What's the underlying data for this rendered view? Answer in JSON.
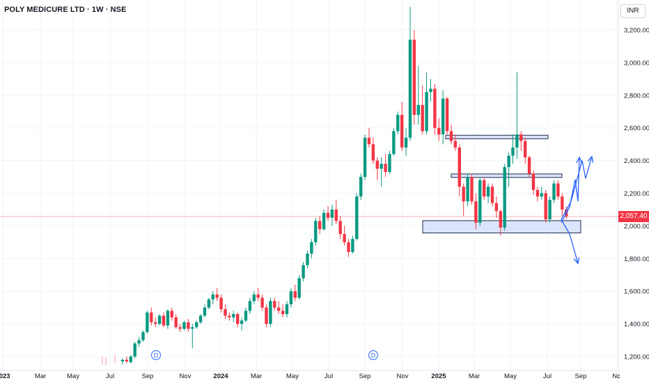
{
  "header": {
    "title": "POLY MEDICURE LTD · 1W · NSE",
    "currency": "INR"
  },
  "colors": {
    "up": "#089981",
    "down": "#f23645",
    "price_line": "#f23645",
    "zone_fill": "#dbe4fb",
    "zone_stroke": "#1e2a4a",
    "arrow": "#2962ff",
    "grid": "#f0f3fa",
    "event_marker": "#2962ff"
  },
  "chart_data": {
    "type": "candlestick",
    "title": "POLY MEDICURE LTD · 1W · NSE",
    "ylim": [
      1150,
      3400
    ],
    "y_ticks": [
      1200,
      1400,
      1600,
      1800,
      2000,
      2200,
      2400,
      2600,
      2800,
      3000,
      3200
    ],
    "y_tick_labels": [
      "1,200.00",
      "1,400.00",
      "1,600.00",
      "1,800.00",
      "2,000.00",
      "2,200.00",
      "2,400.00",
      "2,600.00",
      "2,800.00",
      "3,000.00",
      "3,200.00"
    ],
    "x_tick_labels": [
      "2023",
      "Mar",
      "May",
      "Jul",
      "Sep",
      "Nov",
      "2024",
      "Mar",
      "May",
      "Jul",
      "Sep",
      "Nov",
      "2025",
      "Mar",
      "May",
      "Jul",
      "Sep",
      "Nc"
    ],
    "x_tick_bold": [
      true,
      false,
      false,
      false,
      false,
      false,
      true,
      false,
      false,
      false,
      false,
      false,
      true,
      false,
      false,
      false,
      false,
      false
    ],
    "last_price": 2057.4,
    "last_price_label": "2,057.40",
    "dividend_marker_label": "D",
    "candles": [
      [
        1170,
        1190,
        1150,
        1180
      ],
      [
        1180,
        1200,
        1160,
        1170
      ],
      [
        1165,
        1210,
        1160,
        1200
      ],
      [
        1200,
        1290,
        1190,
        1280
      ],
      [
        1280,
        1320,
        1260,
        1300
      ],
      [
        1300,
        1360,
        1290,
        1350
      ],
      [
        1350,
        1480,
        1340,
        1470
      ],
      [
        1470,
        1500,
        1390,
        1410
      ],
      [
        1410,
        1440,
        1380,
        1400
      ],
      [
        1400,
        1460,
        1390,
        1450
      ],
      [
        1450,
        1470,
        1380,
        1390
      ],
      [
        1390,
        1490,
        1370,
        1480
      ],
      [
        1480,
        1500,
        1420,
        1440
      ],
      [
        1440,
        1460,
        1370,
        1380
      ],
      [
        1380,
        1400,
        1350,
        1370
      ],
      [
        1370,
        1420,
        1360,
        1410
      ],
      [
        1410,
        1430,
        1350,
        1370
      ],
      [
        1370,
        1400,
        1250,
        1380
      ],
      [
        1380,
        1420,
        1370,
        1410
      ],
      [
        1410,
        1460,
        1400,
        1450
      ],
      [
        1450,
        1520,
        1440,
        1500
      ],
      [
        1500,
        1560,
        1490,
        1550
      ],
      [
        1550,
        1600,
        1520,
        1580
      ],
      [
        1580,
        1620,
        1540,
        1560
      ],
      [
        1560,
        1580,
        1470,
        1490
      ],
      [
        1490,
        1520,
        1430,
        1450
      ],
      [
        1450,
        1470,
        1420,
        1440
      ],
      [
        1440,
        1480,
        1410,
        1460
      ],
      [
        1460,
        1470,
        1380,
        1400
      ],
      [
        1400,
        1440,
        1360,
        1420
      ],
      [
        1420,
        1500,
        1410,
        1480
      ],
      [
        1480,
        1560,
        1460,
        1540
      ],
      [
        1540,
        1600,
        1520,
        1580
      ],
      [
        1580,
        1620,
        1540,
        1560
      ],
      [
        1560,
        1580,
        1480,
        1500
      ],
      [
        1500,
        1520,
        1380,
        1400
      ],
      [
        1400,
        1560,
        1380,
        1540
      ],
      [
        1540,
        1560,
        1480,
        1500
      ],
      [
        1500,
        1540,
        1460,
        1480
      ],
      [
        1480,
        1520,
        1440,
        1460
      ],
      [
        1460,
        1540,
        1440,
        1520
      ],
      [
        1520,
        1620,
        1500,
        1600
      ],
      [
        1600,
        1640,
        1540,
        1560
      ],
      [
        1560,
        1700,
        1550,
        1680
      ],
      [
        1680,
        1780,
        1660,
        1760
      ],
      [
        1760,
        1850,
        1740,
        1830
      ],
      [
        1830,
        1920,
        1800,
        1900
      ],
      [
        1900,
        2050,
        1880,
        2030
      ],
      [
        2030,
        2060,
        1950,
        1980
      ],
      [
        1980,
        2100,
        1970,
        2080
      ],
      [
        2080,
        2120,
        2030,
        2050
      ],
      [
        2050,
        2130,
        2000,
        2100
      ],
      [
        2100,
        2160,
        2010,
        2030
      ],
      [
        2030,
        2060,
        1920,
        1950
      ],
      [
        1950,
        2000,
        1880,
        1900
      ],
      [
        1900,
        1920,
        1810,
        1840
      ],
      [
        1840,
        1940,
        1830,
        1920
      ],
      [
        1920,
        2200,
        1910,
        2180
      ],
      [
        2180,
        2320,
        2160,
        2300
      ],
      [
        2300,
        2560,
        2280,
        2540
      ],
      [
        2540,
        2600,
        2480,
        2500
      ],
      [
        2500,
        2540,
        2380,
        2400
      ],
      [
        2400,
        2420,
        2280,
        2350
      ],
      [
        2350,
        2420,
        2240,
        2380
      ],
      [
        2380,
        2440,
        2300,
        2330
      ],
      [
        2330,
        2460,
        2320,
        2440
      ],
      [
        2440,
        2600,
        2430,
        2580
      ],
      [
        2580,
        2700,
        2560,
        2680
      ],
      [
        2680,
        2760,
        2460,
        2480
      ],
      [
        2480,
        2600,
        2430,
        2540
      ],
      [
        2540,
        3340,
        2520,
        3140
      ],
      [
        3140,
        3200,
        2620,
        2680
      ],
      [
        2680,
        2980,
        2620,
        2740
      ],
      [
        2740,
        2860,
        2560,
        2580
      ],
      [
        2580,
        2940,
        2560,
        2820
      ],
      [
        2820,
        2900,
        2760,
        2840
      ],
      [
        2840,
        2870,
        2560,
        2600
      ],
      [
        2600,
        2660,
        2520,
        2560
      ],
      [
        2560,
        2830,
        2500,
        2780
      ],
      [
        2780,
        2790,
        2560,
        2580
      ],
      [
        2580,
        2620,
        2500,
        2520
      ],
      [
        2520,
        2560,
        2460,
        2480
      ],
      [
        2480,
        2500,
        2180,
        2240
      ],
      [
        2240,
        2260,
        2060,
        2150
      ],
      [
        2150,
        2320,
        2120,
        2300
      ],
      [
        2300,
        2320,
        2130,
        2150
      ],
      [
        2150,
        2200,
        1980,
        2020
      ],
      [
        2020,
        2300,
        2000,
        2280
      ],
      [
        2280,
        2300,
        2160,
        2180
      ],
      [
        2180,
        2260,
        2140,
        2240
      ],
      [
        2240,
        2260,
        2120,
        2140
      ],
      [
        2140,
        2180,
        2050,
        2090
      ],
      [
        2090,
        2100,
        1940,
        1990
      ],
      [
        1990,
        2380,
        1970,
        2360
      ],
      [
        2360,
        2450,
        2240,
        2430
      ],
      [
        2430,
        2560,
        2380,
        2480
      ],
      [
        2480,
        2940,
        2410,
        2560
      ],
      [
        2560,
        2580,
        2460,
        2520
      ],
      [
        2520,
        2540,
        2380,
        2420
      ],
      [
        2420,
        2430,
        2300,
        2320
      ],
      [
        2320,
        2340,
        2190,
        2220
      ],
      [
        2220,
        2240,
        2150,
        2180
      ],
      [
        2180,
        2240,
        2160,
        2200
      ],
      [
        2200,
        2220,
        2020,
        2040
      ],
      [
        2040,
        2180,
        2020,
        2160
      ],
      [
        2160,
        2280,
        2140,
        2260
      ],
      [
        2260,
        2280,
        2160,
        2180
      ],
      [
        2180,
        2200,
        2060,
        2100
      ],
      [
        2100,
        2120,
        2040,
        2057.4
      ]
    ],
    "zones": [
      {
        "low": 2535,
        "high": 2555,
        "from_index": 80,
        "to_index": 112
      },
      {
        "low": 2300,
        "high": 2318,
        "from_index": 83,
        "to_index": 113
      },
      {
        "low": 1957,
        "high": 2032,
        "from_index": 78,
        "to_index": 115
      }
    ],
    "projection_up_1": [
      [
        2020,
        2060
      ],
      [
        2115,
        2020
      ],
      [
        2285,
        2240
      ],
      [
        2150,
        2300
      ],
      [
        2420,
        2415
      ]
    ],
    "projection_up_2": [
      [
        2040,
        2060
      ],
      [
        2150,
        2080
      ],
      [
        2400,
        2250
      ],
      [
        2290,
        2290
      ],
      [
        2425,
        2430
      ]
    ],
    "projection_down": [
      [
        2040,
        2060
      ],
      [
        1950,
        2090
      ],
      [
        1770,
        2130
      ]
    ]
  }
}
